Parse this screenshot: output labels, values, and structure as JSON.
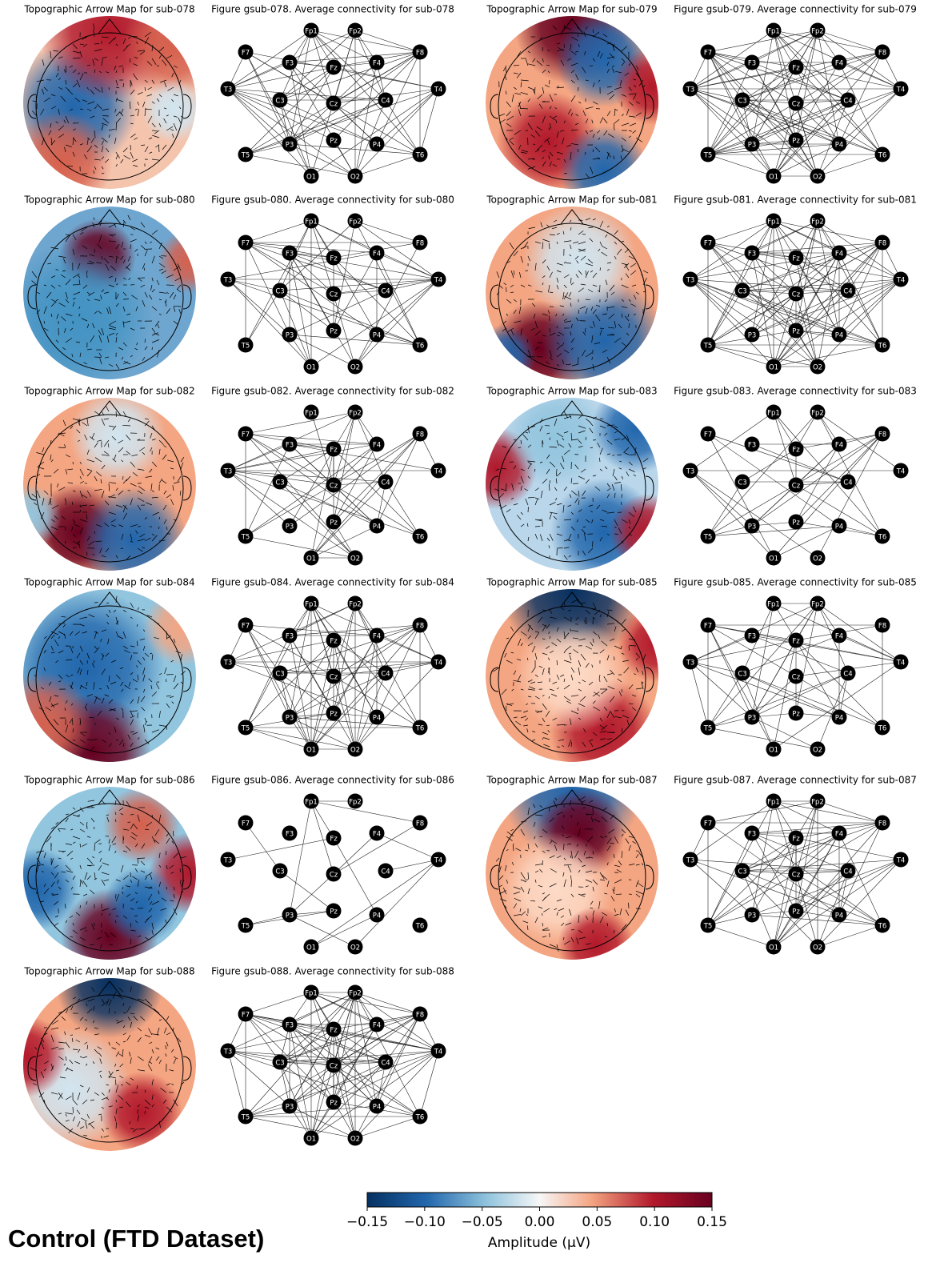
{
  "electrodes": [
    "Fp1",
    "Fp2",
    "F7",
    "F3",
    "Fz",
    "F4",
    "F8",
    "T3",
    "C3",
    "Cz",
    "C4",
    "T4",
    "T5",
    "P3",
    "Pz",
    "P4",
    "T6",
    "O1",
    "O2"
  ],
  "panels": [
    {
      "topo_title": "Topographic Arrow Map for sub-078",
      "conn_title": "Figure gsub-078. Average connectivity for sub-078"
    },
    {
      "topo_title": "Topographic Arrow Map for sub-079",
      "conn_title": "Figure gsub-079. Average connectivity for sub-079"
    },
    {
      "topo_title": "Topographic Arrow Map for sub-080",
      "conn_title": "Figure gsub-080. Average connectivity for sub-080"
    },
    {
      "topo_title": "Topographic Arrow Map for sub-081",
      "conn_title": "Figure gsub-081. Average connectivity for sub-081"
    },
    {
      "topo_title": "Topographic Arrow Map for sub-082",
      "conn_title": "Figure gsub-082. Average connectivity for sub-082"
    },
    {
      "topo_title": "Topographic Arrow Map for sub-083",
      "conn_title": "Figure gsub-083. Average connectivity for sub-083"
    },
    {
      "topo_title": "Topographic Arrow Map for sub-084",
      "conn_title": "Figure gsub-084. Average connectivity for sub-084"
    },
    {
      "topo_title": "Topographic Arrow Map for sub-085",
      "conn_title": "Figure gsub-085. Average connectivity for sub-085"
    },
    {
      "topo_title": "Topographic Arrow Map for sub-086",
      "conn_title": "Figure gsub-086. Average connectivity for sub-086"
    },
    {
      "topo_title": "Topographic Arrow Map for sub-087",
      "conn_title": "Figure gsub-087. Average connectivity for sub-087"
    },
    {
      "topo_title": "Topographic Arrow Map for sub-088",
      "conn_title": "Figure gsub-088. Average connectivity for sub-088"
    }
  ],
  "footer": "Control (FTD Dataset)",
  "colorbar": {
    "label": "Amplitude (µV)",
    "clim": [
      -0.15,
      0.15
    ],
    "ticks": [
      {
        "value": -0.15,
        "label": "−0.15"
      },
      {
        "value": -0.1,
        "label": "−0.10"
      },
      {
        "value": -0.05,
        "label": "−0.05"
      },
      {
        "value": 0,
        "label": "0.00"
      },
      0.05,
      {
        "value": 0.1,
        "label": "0.10"
      },
      0.15
    ]
  }
}
